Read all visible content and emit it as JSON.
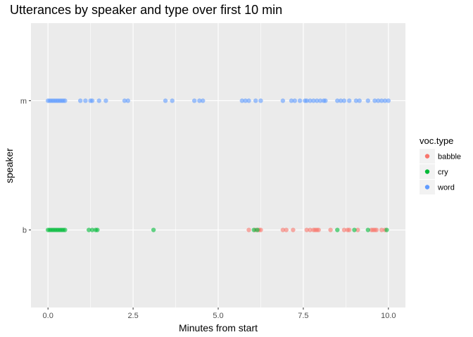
{
  "chart_data": {
    "type": "scatter",
    "title": "Utterances by speaker and type over first 10 min",
    "xlabel": "Minutes from start",
    "ylabel": "speaker",
    "xlim": [
      -0.5,
      10.5
    ],
    "x_ticks": [
      0.0,
      2.5,
      5.0,
      7.5,
      10.0
    ],
    "x_tick_labels": [
      "0.0",
      "2.5",
      "5.0",
      "7.5",
      "10.0"
    ],
    "y_categories": [
      "b",
      "m"
    ],
    "grid": true,
    "legend_position": "right",
    "legend_title": "voc.type",
    "series": [
      {
        "name": "babble",
        "color": "#F8766D",
        "points": [
          {
            "x": 5.9,
            "y": "b"
          },
          {
            "x": 6.1,
            "y": "b"
          },
          {
            "x": 6.2,
            "y": "b"
          },
          {
            "x": 6.25,
            "y": "b"
          },
          {
            "x": 6.9,
            "y": "b"
          },
          {
            "x": 7.0,
            "y": "b"
          },
          {
            "x": 7.2,
            "y": "b"
          },
          {
            "x": 7.6,
            "y": "b"
          },
          {
            "x": 7.7,
            "y": "b"
          },
          {
            "x": 7.8,
            "y": "b"
          },
          {
            "x": 7.85,
            "y": "b"
          },
          {
            "x": 7.9,
            "y": "b"
          },
          {
            "x": 7.95,
            "y": "b"
          },
          {
            "x": 8.3,
            "y": "b"
          },
          {
            "x": 8.7,
            "y": "b"
          },
          {
            "x": 8.8,
            "y": "b"
          },
          {
            "x": 8.85,
            "y": "b"
          },
          {
            "x": 9.1,
            "y": "b"
          },
          {
            "x": 9.5,
            "y": "b"
          },
          {
            "x": 9.55,
            "y": "b"
          },
          {
            "x": 9.6,
            "y": "b"
          },
          {
            "x": 9.65,
            "y": "b"
          },
          {
            "x": 9.8,
            "y": "b"
          },
          {
            "x": 9.9,
            "y": "b"
          }
        ]
      },
      {
        "name": "cry",
        "color": "#00BA38",
        "points": [
          {
            "x": 0.0,
            "y": "b"
          },
          {
            "x": 0.05,
            "y": "b"
          },
          {
            "x": 0.1,
            "y": "b"
          },
          {
            "x": 0.15,
            "y": "b"
          },
          {
            "x": 0.2,
            "y": "b"
          },
          {
            "x": 0.25,
            "y": "b"
          },
          {
            "x": 0.3,
            "y": "b"
          },
          {
            "x": 0.35,
            "y": "b"
          },
          {
            "x": 0.4,
            "y": "b"
          },
          {
            "x": 0.45,
            "y": "b"
          },
          {
            "x": 0.5,
            "y": "b"
          },
          {
            "x": 1.2,
            "y": "b"
          },
          {
            "x": 1.3,
            "y": "b"
          },
          {
            "x": 1.4,
            "y": "b"
          },
          {
            "x": 1.45,
            "y": "b"
          },
          {
            "x": 3.1,
            "y": "b"
          },
          {
            "x": 6.05,
            "y": "b"
          },
          {
            "x": 6.15,
            "y": "b"
          },
          {
            "x": 8.5,
            "y": "b"
          },
          {
            "x": 9.0,
            "y": "b"
          },
          {
            "x": 9.4,
            "y": "b"
          },
          {
            "x": 9.95,
            "y": "b"
          }
        ]
      },
      {
        "name": "word",
        "color": "#619CFF",
        "points": [
          {
            "x": 0.0,
            "y": "m"
          },
          {
            "x": 0.05,
            "y": "m"
          },
          {
            "x": 0.1,
            "y": "m"
          },
          {
            "x": 0.15,
            "y": "m"
          },
          {
            "x": 0.2,
            "y": "m"
          },
          {
            "x": 0.25,
            "y": "m"
          },
          {
            "x": 0.3,
            "y": "m"
          },
          {
            "x": 0.35,
            "y": "m"
          },
          {
            "x": 0.4,
            "y": "m"
          },
          {
            "x": 0.45,
            "y": "m"
          },
          {
            "x": 0.5,
            "y": "m"
          },
          {
            "x": 0.95,
            "y": "m"
          },
          {
            "x": 1.1,
            "y": "m"
          },
          {
            "x": 1.25,
            "y": "m"
          },
          {
            "x": 1.3,
            "y": "m"
          },
          {
            "x": 1.5,
            "y": "m"
          },
          {
            "x": 1.7,
            "y": "m"
          },
          {
            "x": 2.25,
            "y": "m"
          },
          {
            "x": 2.35,
            "y": "m"
          },
          {
            "x": 3.45,
            "y": "m"
          },
          {
            "x": 3.65,
            "y": "m"
          },
          {
            "x": 4.3,
            "y": "m"
          },
          {
            "x": 4.45,
            "y": "m"
          },
          {
            "x": 4.55,
            "y": "m"
          },
          {
            "x": 5.7,
            "y": "m"
          },
          {
            "x": 5.8,
            "y": "m"
          },
          {
            "x": 5.9,
            "y": "m"
          },
          {
            "x": 6.1,
            "y": "m"
          },
          {
            "x": 6.25,
            "y": "m"
          },
          {
            "x": 6.9,
            "y": "m"
          },
          {
            "x": 7.15,
            "y": "m"
          },
          {
            "x": 7.25,
            "y": "m"
          },
          {
            "x": 7.4,
            "y": "m"
          },
          {
            "x": 7.55,
            "y": "m"
          },
          {
            "x": 7.6,
            "y": "m"
          },
          {
            "x": 7.7,
            "y": "m"
          },
          {
            "x": 7.8,
            "y": "m"
          },
          {
            "x": 7.9,
            "y": "m"
          },
          {
            "x": 8.0,
            "y": "m"
          },
          {
            "x": 8.1,
            "y": "m"
          },
          {
            "x": 8.15,
            "y": "m"
          },
          {
            "x": 8.5,
            "y": "m"
          },
          {
            "x": 8.6,
            "y": "m"
          },
          {
            "x": 8.7,
            "y": "m"
          },
          {
            "x": 8.85,
            "y": "m"
          },
          {
            "x": 9.05,
            "y": "m"
          },
          {
            "x": 9.15,
            "y": "m"
          },
          {
            "x": 9.4,
            "y": "m"
          },
          {
            "x": 9.6,
            "y": "m"
          },
          {
            "x": 9.7,
            "y": "m"
          },
          {
            "x": 9.8,
            "y": "m"
          },
          {
            "x": 9.9,
            "y": "m"
          },
          {
            "x": 10.0,
            "y": "m"
          }
        ]
      }
    ]
  }
}
